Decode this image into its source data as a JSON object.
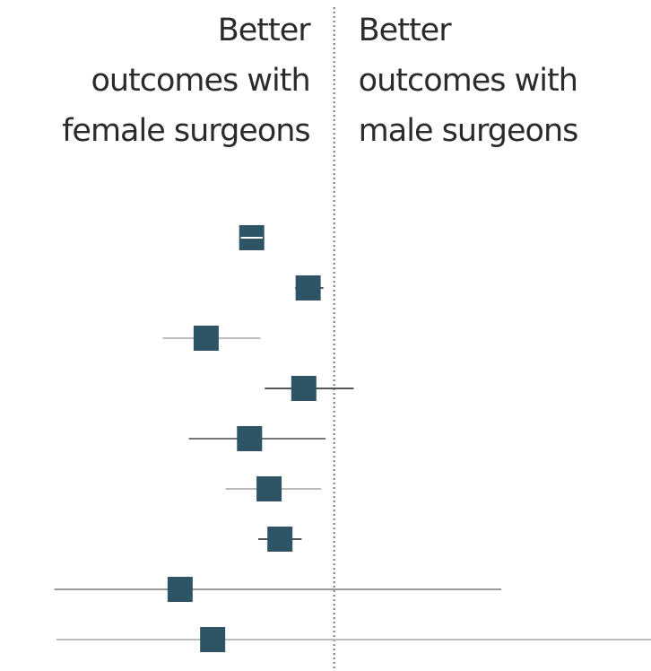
{
  "chart_data": {
    "type": "forest",
    "left_label": [
      "Better",
      "outcomes with",
      "female surgeons"
    ],
    "right_label": [
      "Better",
      "outcomes with",
      "male surgeons"
    ],
    "estimates": [
      0.962,
      0.988,
      0.941,
      0.986,
      0.961,
      0.97,
      0.975,
      0.929,
      0.944
    ],
    "lower": [
      0.957,
      0.982,
      0.921,
      0.968,
      0.933,
      0.95,
      0.965,
      0.871,
      0.872
    ],
    "upper": [
      0.967,
      0.995,
      0.966,
      1.009,
      0.996,
      0.994,
      0.985,
      1.077,
      1.146
    ],
    "ci_colors": [
      "#ffffff",
      "#555555",
      "#bbbbbb",
      "#555555",
      "#777777",
      "#bbbbbb",
      "#555555",
      "#999999",
      "#bbbbbb"
    ],
    "reference": 1,
    "xlim": [
      0.846,
      1.146
    ],
    "color": "#2d5566"
  }
}
